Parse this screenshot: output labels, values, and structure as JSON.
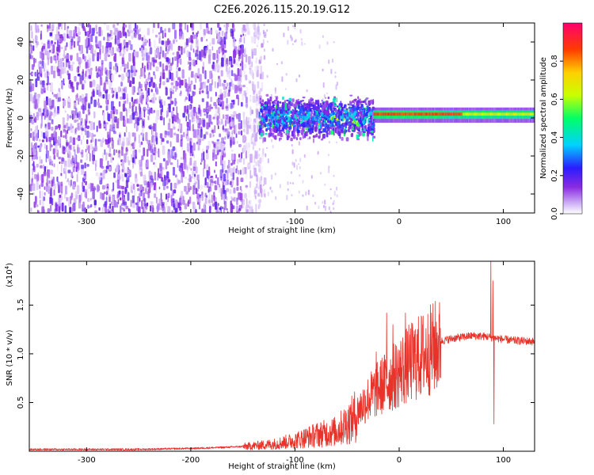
{
  "title": "C2E6.2026.115.20.19.G12",
  "chart_data": [
    {
      "type": "heatmap",
      "xlabel": "Height of straight line (km)",
      "ylabel": "Frequency (Hz)",
      "xlim": [
        -355,
        130
      ],
      "ylim": [
        -50,
        50
      ],
      "xticks": [
        -300,
        -200,
        -100,
        0,
        100
      ],
      "yticks": [
        -40,
        -20,
        0,
        20,
        40
      ],
      "colorbar": {
        "label": "Normalized spectral amplitude",
        "range": [
          0,
          1
        ],
        "ticks": [
          "0.0",
          "0.2",
          "0.4",
          "0.6",
          "0.8"
        ],
        "tick_values": [
          0.0,
          0.2,
          0.4,
          0.6,
          0.8
        ],
        "colors": [
          "#ffffff",
          "#c9a8f5",
          "#8a2be2",
          "#2b1cff",
          "#00d2ff",
          "#00ff66",
          "#c8ff00",
          "#ffd000",
          "#ff3c00",
          "#ff0070"
        ]
      },
      "regions": [
        {
          "x": [
            -355,
            -140
          ],
          "y": [
            -50,
            50
          ],
          "level": "low",
          "amplitude": 0.15
        },
        {
          "x": [
            -135,
            -25
          ],
          "y": [
            -12,
            12
          ],
          "level": "medium",
          "amplitude": 0.4
        },
        {
          "x": [
            -25,
            130
          ],
          "y": [
            -3,
            5
          ],
          "level": "high",
          "amplitude": 0.85
        }
      ]
    },
    {
      "type": "line",
      "xlabel": "Height of straight line (km)",
      "ylabel": "SNR (10 * v/v)",
      "yscale_label": "(x10",
      "yscale_exp": "4",
      "yscale_close": ")",
      "xlim": [
        -355,
        130
      ],
      "ylim": [
        0,
        1.95
      ],
      "xticks": [
        -300,
        -200,
        -100,
        0,
        100
      ],
      "yticks": [
        0.5,
        1.0,
        1.5
      ],
      "ytick_labels": [
        "0.5",
        "1.0",
        "1.5"
      ],
      "line_color": "#e8322a",
      "envelope": [
        {
          "x": -355,
          "y": 0.02
        },
        {
          "x": -300,
          "y": 0.02
        },
        {
          "x": -250,
          "y": 0.02
        },
        {
          "x": -200,
          "y": 0.03
        },
        {
          "x": -170,
          "y": 0.04
        },
        {
          "x": -150,
          "y": 0.05
        },
        {
          "x": -120,
          "y": 0.08
        },
        {
          "x": -100,
          "y": 0.12
        },
        {
          "x": -80,
          "y": 0.18
        },
        {
          "x": -60,
          "y": 0.22
        },
        {
          "x": -45,
          "y": 0.35
        },
        {
          "x": -35,
          "y": 0.5
        },
        {
          "x": -25,
          "y": 0.62
        },
        {
          "x": -15,
          "y": 0.72
        },
        {
          "x": -5,
          "y": 0.8
        },
        {
          "x": 5,
          "y": 0.9
        },
        {
          "x": 15,
          "y": 0.98
        },
        {
          "x": 25,
          "y": 1.05
        },
        {
          "x": 35,
          "y": 1.12
        },
        {
          "x": 50,
          "y": 1.16
        },
        {
          "x": 70,
          "y": 1.19
        },
        {
          "x": 85,
          "y": 1.18
        },
        {
          "x": 95,
          "y": 1.16
        },
        {
          "x": 110,
          "y": 1.14
        },
        {
          "x": 130,
          "y": 1.13
        }
      ],
      "spikes": [
        {
          "x": -22,
          "y": 1.02
        },
        {
          "x": -12,
          "y": 1.42
        },
        {
          "x": -6,
          "y": 1.3
        },
        {
          "x": 6,
          "y": 1.42
        },
        {
          "x": 88,
          "y": 1.95
        },
        {
          "x": 90,
          "y": 1.75
        },
        {
          "x": 91,
          "y": 0.28
        }
      ]
    }
  ]
}
